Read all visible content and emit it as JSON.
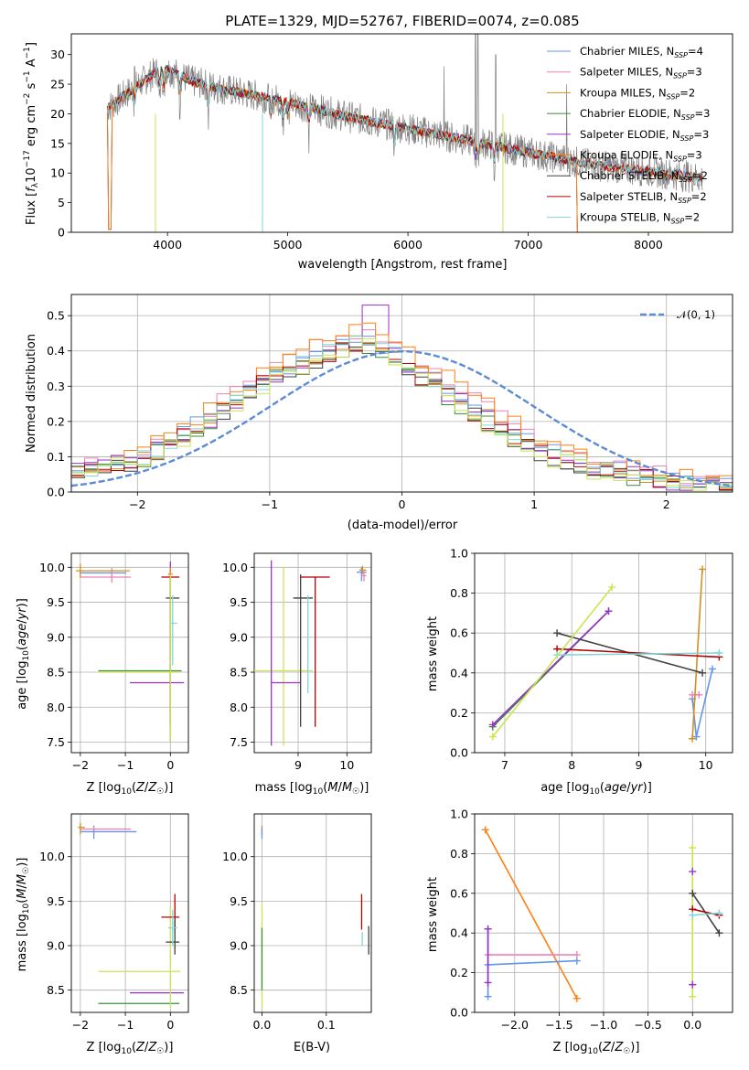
{
  "figure": {
    "title": "PLATE=1329, MJD=52767, FIBERID=0074, z=0.085"
  },
  "colors": {
    "Chabrier MILES": "#6495ed",
    "Salpeter MILES": "#ee82b4",
    "Kroupa MILES": "#d2901e",
    "Chabrier ELODIE": "#3c8c3c",
    "Salpeter ELODIE": "#9932cc",
    "Kroupa ELODIE": "#ff7f0e",
    "Chabrier STELIB": "#404040",
    "Salpeter STELIB": "#b40000",
    "Kroupa STELIB": "#7fd7d7",
    "lime": "#c8e650",
    "data": "#808080",
    "normal": "#5b8bd6"
  },
  "chart_data": [
    {
      "id": "spectrum",
      "type": "line",
      "title": "PLATE=1329, MJD=52767, FIBERID=0074, z=0.085",
      "xlabel": "wavelength [Angstrom, rest frame]",
      "ylabel": "Flux [f_λ10^-17 erg cm^-2 s^-1 A^-1]",
      "xlim": [
        3200,
        8700
      ],
      "ylim": [
        0,
        33.5
      ],
      "xticks": [
        4000,
        5000,
        6000,
        7000,
        8000
      ],
      "yticks": [
        0,
        5,
        10,
        15,
        20,
        25,
        30
      ],
      "grid": false,
      "legend_position": "top-right",
      "legend": [
        {
          "base": "Chabrier MILES, N",
          "sub": "SSP",
          "tail": "=4",
          "color": "#6495ed"
        },
        {
          "base": "Salpeter MILES, N",
          "sub": "SSP",
          "tail": "=3",
          "color": "#ee82b4"
        },
        {
          "base": "Kroupa MILES, N",
          "sub": "SSP",
          "tail": "=2",
          "color": "#d2901e"
        },
        {
          "base": "Chabrier ELODIE, N",
          "sub": "SSP",
          "tail": "=3",
          "color": "#3c8c3c"
        },
        {
          "base": "Salpeter ELODIE, N",
          "sub": "SSP",
          "tail": "=3",
          "color": "#9932cc"
        },
        {
          "base": "Kroupa ELODIE, N",
          "sub": "SSP",
          "tail": "=3",
          "color": "#ff7f0e"
        },
        {
          "base": "Chabrier STELIB, N",
          "sub": "SSP",
          "tail": "=2",
          "color": "#404040"
        },
        {
          "base": "Salpeter STELIB, N",
          "sub": "SSP",
          "tail": "=2",
          "color": "#b40000"
        },
        {
          "base": "Kroupa STELIB, N",
          "sub": "SSP",
          "tail": "=2",
          "color": "#7fd7d7"
        }
      ],
      "continuum": [
        [
          3500,
          21
        ],
        [
          3700,
          24
        ],
        [
          3900,
          27
        ],
        [
          4000,
          27.5
        ],
        [
          4200,
          25.5
        ],
        [
          4500,
          24
        ],
        [
          5000,
          22
        ],
        [
          5500,
          19.5
        ],
        [
          6000,
          17.5
        ],
        [
          6500,
          15.5
        ],
        [
          7000,
          13.5
        ],
        [
          7500,
          11.5
        ],
        [
          8000,
          10.3
        ],
        [
          8500,
          9
        ]
      ]
    },
    {
      "id": "residuals",
      "type": "line",
      "xlabel": "(data-model)/error",
      "ylabel": "Normed distribution",
      "xlim": [
        -2.5,
        2.5
      ],
      "ylim": [
        0,
        0.56
      ],
      "xticks": [
        -2,
        -1,
        0,
        1,
        2
      ],
      "yticks": [
        0,
        0.1,
        0.2,
        0.3,
        0.4,
        0.5
      ],
      "grid": true,
      "legend_position": "top-right",
      "legend": [
        {
          "label": "𝒩(0, 1)",
          "color": "#5b8bd6",
          "style": "dashed"
        }
      ],
      "bin_width": 0.1,
      "histogram_envelope": [
        [
          -2.5,
          0.06
        ],
        [
          -2.0,
          0.09
        ],
        [
          -1.5,
          0.2
        ],
        [
          -1.0,
          0.33
        ],
        [
          -0.5,
          0.41
        ],
        [
          -0.25,
          0.44
        ],
        [
          0.0,
          0.38
        ],
        [
          0.5,
          0.25
        ],
        [
          1.0,
          0.13
        ],
        [
          1.5,
          0.07
        ],
        [
          2.0,
          0.035
        ],
        [
          2.5,
          0.02
        ]
      ]
    },
    {
      "id": "age_vs_Z",
      "type": "scatter",
      "xlabel": "Z [log10(Z/Z☉)]",
      "ylabel": "age [log10(age/yr)]",
      "xlim": [
        -2.2,
        0.4
      ],
      "ylim": [
        7.35,
        10.2
      ],
      "xticks": [
        -2,
        -1,
        0
      ],
      "yticks": [
        7.5,
        8.0,
        8.5,
        9.0,
        9.5,
        10.0
      ],
      "grid": true,
      "errorbars": [
        {
          "x": -1.3,
          "y": 9.92,
          "x0": -2.02,
          "x1": -0.98,
          "y0": 9.95,
          "y1": 9.89,
          "c": "Chabrier MILES"
        },
        {
          "x": -1.3,
          "y": 9.86,
          "x0": -2.0,
          "x1": -0.88,
          "y0": 9.99,
          "y1": 9.78,
          "c": "Salpeter MILES"
        },
        {
          "x": -2.0,
          "y": 9.95,
          "x0": -2.1,
          "x1": -0.9,
          "y0": 10.05,
          "y1": 9.85,
          "c": "Kroupa MILES"
        },
        {
          "x": 0.0,
          "y": 8.52,
          "x0": -1.6,
          "x1": 0.25,
          "y0": 8.52,
          "y1": 8.52,
          "c": "Chabrier ELODIE"
        },
        {
          "x": 0.0,
          "y": 8.35,
          "x0": -0.9,
          "x1": 0.3,
          "y0": 10.08,
          "y1": 7.5,
          "c": "Salpeter ELODIE"
        },
        {
          "x": 0.0,
          "y": 9.9,
          "x0": -0.05,
          "x1": 0.05,
          "y0": 10.0,
          "y1": 9.8,
          "c": "Kroupa ELODIE"
        },
        {
          "x": 0.0,
          "y": 9.56,
          "x0": -0.1,
          "x1": 0.2,
          "y0": 9.9,
          "y1": 7.75,
          "c": "Chabrier STELIB"
        },
        {
          "x": 0.0,
          "y": 9.86,
          "x0": -0.2,
          "x1": 0.2,
          "y0": 9.9,
          "y1": 7.75,
          "c": "Salpeter STELIB"
        },
        {
          "x": 0.0,
          "y": 8.5,
          "x0": -1.6,
          "x1": 0.2,
          "y0": 9.9,
          "y1": 7.5,
          "c": "lime"
        },
        {
          "x": 0.05,
          "y": 9.2,
          "x0": 0.0,
          "x1": 0.15,
          "y0": 9.6,
          "y1": 8.6,
          "c": "Kroupa STELIB"
        }
      ]
    },
    {
      "id": "age_vs_mass",
      "type": "scatter",
      "xlabel": "mass [log10(M/M☉)]",
      "ylabel": "",
      "xlim": [
        8.1,
        10.5
      ],
      "ylim": [
        7.35,
        10.2
      ],
      "xticks": [
        9,
        10
      ],
      "yticks": [
        7.5,
        8.0,
        8.5,
        9.0,
        9.5,
        10.0
      ],
      "grid": true,
      "errorbars": [
        {
          "x": 8.7,
          "y": 8.52,
          "x0": 8.1,
          "x1": 9.3,
          "y0": 10.0,
          "y1": 7.45,
          "c": "lime"
        },
        {
          "x": 8.45,
          "y": 8.35,
          "x0": 8.45,
          "x1": 9.05,
          "y0": 10.1,
          "y1": 7.45,
          "c": "Salpeter ELODIE"
        },
        {
          "x": 9.05,
          "y": 9.56,
          "x0": 8.9,
          "x1": 9.3,
          "y0": 9.9,
          "y1": 7.72,
          "c": "Chabrier STELIB"
        },
        {
          "x": 9.35,
          "y": 9.86,
          "x0": 9.05,
          "x1": 9.65,
          "y0": 9.86,
          "y1": 7.72,
          "c": "Salpeter STELIB"
        },
        {
          "x": 9.2,
          "y": 9.0,
          "x0": 9.2,
          "x1": 9.2,
          "y0": 9.6,
          "y1": 8.2,
          "c": "Kroupa STELIB"
        },
        {
          "x": 10.3,
          "y": 9.93,
          "x0": 10.2,
          "x1": 10.4,
          "y0": 10.0,
          "y1": 9.8,
          "c": "Chabrier MILES"
        },
        {
          "x": 10.35,
          "y": 9.88,
          "x0": 10.3,
          "x1": 10.4,
          "y0": 9.95,
          "y1": 9.8,
          "c": "Salpeter MILES"
        },
        {
          "x": 10.32,
          "y": 9.96,
          "x0": 10.25,
          "x1": 10.4,
          "y0": 10.02,
          "y1": 9.9,
          "c": "Kroupa MILES"
        }
      ]
    },
    {
      "id": "weight_vs_age",
      "type": "line",
      "xlabel": "age [log10(age/yr)]",
      "ylabel": "mass weight",
      "xlim": [
        6.55,
        10.4
      ],
      "ylim": [
        0,
        1
      ],
      "xticks": [
        7,
        8,
        9,
        10
      ],
      "yticks": [
        0,
        0.2,
        0.4,
        0.6,
        0.8,
        1.0
      ],
      "grid": true,
      "series": [
        {
          "c": "Chabrier MILES",
          "pts": [
            [
              9.8,
              0.27
            ],
            [
              9.86,
              0.08
            ],
            [
              10.1,
              0.42
            ]
          ]
        },
        {
          "c": "Salpeter MILES",
          "pts": [
            [
              9.8,
              0.29
            ],
            [
              9.9,
              0.29
            ]
          ]
        },
        {
          "c": "Kroupa MILES",
          "pts": [
            [
              9.8,
              0.07
            ],
            [
              9.95,
              0.92
            ]
          ]
        },
        {
          "c": "Chabrier ELODIE",
          "pts": [
            [
              6.82,
              0.13
            ],
            [
              8.55,
              0.71
            ]
          ]
        },
        {
          "c": "Salpeter ELODIE",
          "pts": [
            [
              6.82,
              0.14
            ],
            [
              8.55,
              0.71
            ]
          ]
        },
        {
          "c": "Chabrier STELIB",
          "pts": [
            [
              7.78,
              0.6
            ],
            [
              9.95,
              0.4
            ]
          ]
        },
        {
          "c": "Salpeter STELIB",
          "pts": [
            [
              7.78,
              0.52
            ],
            [
              10.2,
              0.48
            ]
          ]
        },
        {
          "c": "Kroupa STELIB",
          "pts": [
            [
              7.78,
              0.49
            ],
            [
              10.2,
              0.5
            ]
          ]
        },
        {
          "c": "lime",
          "pts": [
            [
              6.82,
              0.08
            ],
            [
              8.6,
              0.83
            ]
          ]
        }
      ]
    },
    {
      "id": "mass_vs_Z",
      "type": "scatter",
      "xlabel": "Z [log10(Z/Z☉)]",
      "ylabel": "mass [log10(M/M☉)]",
      "xlim": [
        -2.2,
        0.4
      ],
      "ylim": [
        8.25,
        10.48
      ],
      "xticks": [
        -2,
        -1,
        0
      ],
      "yticks": [
        8.5,
        9.0,
        9.5,
        10.0
      ],
      "grid": true,
      "errorbars": [
        {
          "x": -1.7,
          "y": 10.28,
          "x0": -2.0,
          "x1": -0.75,
          "y0": 10.35,
          "y1": 10.2,
          "c": "Chabrier MILES"
        },
        {
          "x": -1.7,
          "y": 10.31,
          "x0": -2.0,
          "x1": -0.88,
          "y0": 10.33,
          "y1": 10.29,
          "c": "Salpeter MILES"
        },
        {
          "x": -2.0,
          "y": 10.33,
          "x0": -2.05,
          "x1": -1.9,
          "y0": 10.38,
          "y1": 10.25,
          "c": "Kroupa MILES"
        },
        {
          "x": -0.8,
          "y": 8.35,
          "x0": -1.6,
          "x1": 0.2,
          "y0": 8.35,
          "y1": 8.35,
          "c": "Chabrier ELODIE"
        },
        {
          "x": -0.4,
          "y": 8.47,
          "x0": -0.9,
          "x1": 0.3,
          "y0": 8.47,
          "y1": 8.47,
          "c": "Salpeter ELODIE"
        },
        {
          "x": 0.0,
          "y": 8.71,
          "x0": -1.6,
          "x1": 0.22,
          "y0": 9.45,
          "y1": 8.3,
          "c": "lime"
        },
        {
          "x": 0.1,
          "y": 9.32,
          "x0": -0.2,
          "x1": 0.2,
          "y0": 9.58,
          "y1": 9.18,
          "c": "Salpeter STELIB"
        },
        {
          "x": 0.1,
          "y": 9.04,
          "x0": -0.1,
          "x1": 0.2,
          "y0": 9.3,
          "y1": 8.9,
          "c": "Chabrier STELIB"
        },
        {
          "x": 0.05,
          "y": 9.2,
          "x0": -0.05,
          "x1": 0.15,
          "y0": 9.4,
          "y1": 9.0,
          "c": "Kroupa STELIB"
        }
      ]
    },
    {
      "id": "mass_vs_EBV",
      "type": "scatter",
      "xlabel": "E(B-V)",
      "ylabel": "",
      "xlim": [
        -0.012,
        0.17
      ],
      "ylim": [
        8.25,
        10.48
      ],
      "xticks": [
        0.0,
        0.1
      ],
      "yticks": [
        8.5,
        9.0,
        9.5,
        10.0
      ],
      "grid": true,
      "errorbars": [
        {
          "x": 0.0,
          "y": 10.3,
          "x0": 0.0,
          "x1": 0.0,
          "y0": 10.35,
          "y1": 10.25,
          "c": "Kroupa ELODIE"
        },
        {
          "x": 0.0,
          "y": 10.3,
          "x0": 0.0,
          "x1": 0.0,
          "y0": 10.33,
          "y1": 10.2,
          "c": "Chabrier MILES"
        },
        {
          "x": 0.0,
          "y": 8.9,
          "x0": 0.0,
          "x1": 0.0,
          "y0": 9.47,
          "y1": 8.3,
          "c": "lime"
        },
        {
          "x": 0.0,
          "y": 8.9,
          "x0": 0.0,
          "x1": 0.0,
          "y0": 9.2,
          "y1": 8.5,
          "c": "Chabrier ELODIE"
        },
        {
          "x": 0.155,
          "y": 9.35,
          "x0": 0.155,
          "x1": 0.155,
          "y0": 9.58,
          "y1": 9.18,
          "c": "Salpeter STELIB"
        },
        {
          "x": 0.156,
          "y": 9.1,
          "x0": 0.156,
          "x1": 0.156,
          "y0": 9.15,
          "y1": 9.0,
          "c": "Kroupa STELIB"
        },
        {
          "x": 0.166,
          "y": 9.05,
          "x0": 0.166,
          "x1": 0.166,
          "y0": 9.22,
          "y1": 8.9,
          "c": "Chabrier STELIB"
        }
      ]
    },
    {
      "id": "weight_vs_Z",
      "type": "line",
      "xlabel": "Z [log10(Z/Z☉)]",
      "ylabel": "mass weight",
      "xlim": [
        -2.45,
        0.45
      ],
      "ylim": [
        0,
        1
      ],
      "xticks": [
        -2.0,
        -1.5,
        -1.0,
        -0.5,
        0.0
      ],
      "yticks": [
        0,
        0.2,
        0.4,
        0.6,
        0.8,
        1.0
      ],
      "grid": true,
      "series": [
        {
          "c": "Kroupa ELODIE",
          "pts": [
            [
              -2.33,
              0.92
            ],
            [
              -1.3,
              0.07
            ]
          ]
        },
        {
          "c": "Chabrier MILES",
          "pts": [
            [
              -2.3,
              0.42
            ],
            [
              -2.3,
              0.08
            ],
            [
              -2.3,
              0.24
            ],
            [
              -1.3,
              0.26
            ]
          ]
        },
        {
          "c": "Salpeter MILES",
          "pts": [
            [
              -2.3,
              0.29
            ],
            [
              -1.3,
              0.29
            ]
          ]
        },
        {
          "c": "Salpeter ELODIE",
          "pts": [
            [
              -2.3,
              0.42
            ],
            [
              -2.3,
              0.15
            ]
          ]
        },
        {
          "c": "lime",
          "pts": [
            [
              0.0,
              0.83
            ],
            [
              0.0,
              0.08
            ]
          ]
        },
        {
          "c": "Chabrier STELIB",
          "pts": [
            [
              0.0,
              0.6
            ],
            [
              0.3,
              0.4
            ]
          ]
        },
        {
          "c": "Salpeter STELIB",
          "pts": [
            [
              0.0,
              0.52
            ],
            [
              0.3,
              0.49
            ]
          ]
        },
        {
          "c": "Kroupa STELIB",
          "pts": [
            [
              0.0,
              0.49
            ],
            [
              0.3,
              0.5
            ]
          ]
        }
      ],
      "markers": [
        {
          "x": 0.0,
          "y": 0.71,
          "c": "Salpeter ELODIE"
        },
        {
          "x": 0.0,
          "y": 0.14,
          "c": "Salpeter ELODIE"
        }
      ]
    }
  ]
}
